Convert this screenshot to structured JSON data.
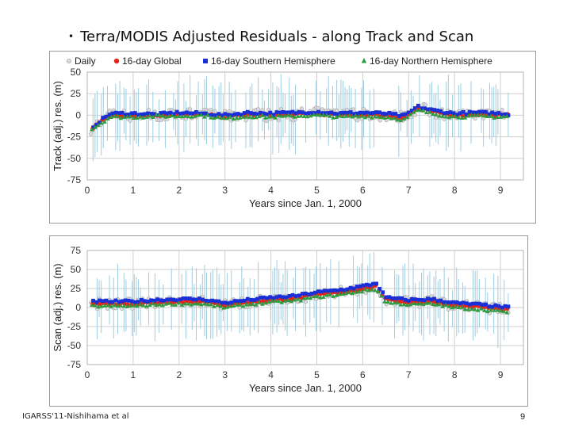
{
  "slide": {
    "bullet": "•",
    "title": "Terra/MODIS Adjusted Residuals  - along Track and Scan",
    "footer": "IGARSS'11-Nishihama et al",
    "page_number": "9"
  },
  "colors": {
    "daily": "#a8a8a8",
    "error_bar": "#9fcde2",
    "global": "#e8221b",
    "southern": "#1b2fd6",
    "northern": "#2f9a3f",
    "grid": "#cfcfcf"
  },
  "legend": [
    "Daily",
    "16-day Global",
    "16-day Southern Hemisphere",
    "16-day Northern Hemisphere"
  ],
  "chart_data": [
    {
      "type": "scatter",
      "title": "",
      "xlabel": "Years since Jan. 1, 2000",
      "ylabel": "Track (adj.) res. (m)",
      "xlim": [
        0,
        9.5
      ],
      "ylim": [
        -75,
        50
      ],
      "xticks": [
        "0",
        "1",
        "2",
        "3",
        "4",
        "5",
        "6",
        "7",
        "8",
        "9"
      ],
      "yticks": [
        "50",
        "25",
        "0",
        "-25",
        "-50",
        "-75"
      ],
      "legend_position": "top",
      "series": [
        {
          "name": "Daily",
          "marker": "circle",
          "note": "grey daily points with light-blue error bars (~±35 m)"
        },
        {
          "name": "16-day Global",
          "marker": "circle",
          "x": [
            0.1,
            0.5,
            1.0,
            1.5,
            2.0,
            2.5,
            3.0,
            3.5,
            4.0,
            4.5,
            5.0,
            5.5,
            6.0,
            6.5,
            6.9,
            7.2,
            7.5,
            8.0,
            8.5,
            9.0,
            9.2
          ],
          "values": [
            -15,
            0,
            0,
            0,
            1,
            1,
            -2,
            1,
            0,
            1,
            2,
            0,
            1,
            0,
            -3,
            8,
            4,
            0,
            1,
            0,
            0
          ]
        },
        {
          "name": "16-day Southern Hemisphere",
          "marker": "square",
          "x": [
            0.1,
            0.5,
            1.0,
            1.5,
            2.0,
            2.5,
            3.0,
            3.5,
            4.0,
            4.5,
            5.0,
            5.5,
            6.0,
            6.5,
            6.9,
            7.2,
            7.5,
            8.0,
            8.5,
            9.0,
            9.2
          ],
          "values": [
            -14,
            2,
            2,
            1,
            3,
            2,
            0,
            3,
            2,
            3,
            4,
            2,
            3,
            2,
            -1,
            10,
            6,
            2,
            3,
            2,
            1
          ]
        },
        {
          "name": "16-day Northern Hemisphere",
          "marker": "triangle",
          "x": [
            0.1,
            0.5,
            1.0,
            1.5,
            2.0,
            2.5,
            3.0,
            3.5,
            4.0,
            4.5,
            5.0,
            5.5,
            6.0,
            6.5,
            6.9,
            7.2,
            7.5,
            8.0,
            8.5,
            9.0,
            9.2
          ],
          "values": [
            -16,
            -2,
            -2,
            -1,
            -1,
            0,
            -4,
            -1,
            -2,
            -1,
            0,
            -2,
            -1,
            -2,
            -5,
            6,
            2,
            -2,
            -1,
            -2,
            -1
          ]
        }
      ]
    },
    {
      "type": "scatter",
      "title": "",
      "xlabel": "Years since Jan. 1, 2000",
      "ylabel": "Scan (adj.) res. (m)",
      "xlim": [
        0,
        9.5
      ],
      "ylim": [
        -75,
        75
      ],
      "xticks": [
        "0",
        "1",
        "2",
        "3",
        "4",
        "5",
        "6",
        "7",
        "8",
        "9"
      ],
      "yticks": [
        "75",
        "50",
        "25",
        "0",
        "-25",
        "-50",
        "-75"
      ],
      "legend_position": "none",
      "series": [
        {
          "name": "Daily",
          "marker": "circle",
          "note": "grey daily points with light-blue error bars (~±40 m)"
        },
        {
          "name": "16-day Global",
          "marker": "circle",
          "x": [
            0.1,
            0.5,
            1.0,
            1.5,
            2.0,
            2.5,
            3.0,
            3.5,
            4.0,
            4.5,
            5.0,
            5.5,
            6.0,
            6.3,
            6.5,
            7.0,
            7.5,
            8.0,
            8.5,
            9.0,
            9.2
          ],
          "values": [
            5,
            5,
            5,
            7,
            8,
            8,
            3,
            7,
            10,
            12,
            17,
            20,
            25,
            28,
            10,
            7,
            8,
            3,
            1,
            -2,
            -3
          ]
        },
        {
          "name": "16-day Southern Hemisphere",
          "marker": "square",
          "x": [
            0.1,
            0.5,
            1.0,
            1.5,
            2.0,
            2.5,
            3.0,
            3.5,
            4.0,
            4.5,
            5.0,
            5.5,
            6.0,
            6.3,
            6.5,
            7.0,
            7.5,
            8.0,
            8.5,
            9.0,
            9.2
          ],
          "values": [
            8,
            8,
            8,
            10,
            11,
            11,
            6,
            10,
            13,
            15,
            20,
            23,
            28,
            32,
            13,
            10,
            11,
            6,
            4,
            1,
            0
          ]
        },
        {
          "name": "16-day Northern Hemisphere",
          "marker": "triangle",
          "x": [
            0.1,
            0.5,
            1.0,
            1.5,
            2.0,
            2.5,
            3.0,
            3.5,
            4.0,
            4.5,
            5.0,
            5.5,
            6.0,
            6.3,
            6.5,
            7.0,
            7.5,
            8.0,
            8.5,
            9.0,
            9.2
          ],
          "values": [
            2,
            2,
            2,
            4,
            5,
            5,
            0,
            4,
            7,
            9,
            14,
            17,
            22,
            24,
            7,
            4,
            5,
            0,
            -2,
            -5,
            -6
          ]
        }
      ]
    }
  ]
}
